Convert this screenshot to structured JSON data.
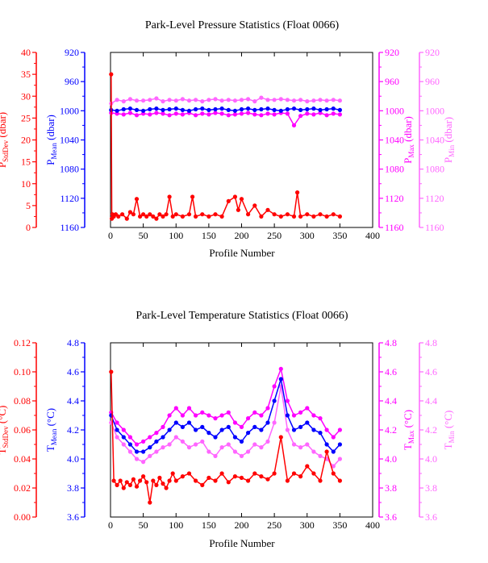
{
  "colors": {
    "stddev": "#ff0000",
    "mean": "#0000ff",
    "max": "#ff00ff",
    "min": "#ff66ff",
    "axis": "#000000"
  },
  "chart_data": [
    {
      "type": "line",
      "title": "Park-Level Pressure Statistics (Float 0066)",
      "xlabel": "Profile Number",
      "xlim": [
        0,
        400
      ],
      "xticks": [
        "0",
        "50",
        "100",
        "150",
        "200",
        "250",
        "300",
        "350",
        "400"
      ],
      "axes": {
        "stddev": {
          "label": "P",
          "sub": "StdDev",
          "unit": " (dbar)",
          "lim": [
            0,
            40
          ],
          "ticks": [
            "0",
            "5",
            "10",
            "15",
            "20",
            "25",
            "30",
            "35",
            "40"
          ]
        },
        "mean": {
          "label": "P",
          "sub": "Mean",
          "unit": " (dbar)",
          "lim": [
            1160,
            920
          ],
          "ticks": [
            "1160",
            "1120",
            "1080",
            "1040",
            "1000",
            "960",
            "920"
          ]
        },
        "max": {
          "label": "P",
          "sub": "Max",
          "unit": " (dbar)",
          "lim": [
            1160,
            920
          ],
          "ticks": [
            "1160",
            "1120",
            "1080",
            "1040",
            "1000",
            "960",
            "920"
          ]
        },
        "min": {
          "label": "P",
          "sub": "Min",
          "unit": " (dbar)",
          "lim": [
            1160,
            920
          ],
          "ticks": [
            "1160",
            "1120",
            "1080",
            "1040",
            "1000",
            "960",
            "920"
          ]
        }
      },
      "series": [
        {
          "key": "min",
          "x": [
            1,
            10,
            20,
            30,
            40,
            50,
            60,
            70,
            80,
            90,
            100,
            110,
            120,
            130,
            140,
            150,
            160,
            170,
            180,
            190,
            200,
            210,
            220,
            230,
            240,
            250,
            260,
            270,
            280,
            290,
            300,
            310,
            320,
            330,
            340,
            350
          ],
          "values": [
            990,
            985,
            987,
            984,
            986,
            986,
            985,
            983,
            987,
            985,
            986,
            984,
            986,
            985,
            987,
            985,
            984,
            986,
            985,
            986,
            985,
            984,
            987,
            982,
            985,
            985,
            984,
            985,
            986,
            985,
            987,
            986,
            985,
            986,
            985,
            986
          ]
        },
        {
          "key": "max",
          "x": [
            1,
            10,
            20,
            30,
            40,
            50,
            60,
            70,
            80,
            90,
            100,
            110,
            120,
            130,
            140,
            150,
            160,
            170,
            180,
            190,
            200,
            210,
            220,
            230,
            240,
            250,
            260,
            270,
            280,
            290,
            300,
            310,
            320,
            330,
            340,
            350
          ],
          "values": [
            1003,
            1004,
            1005,
            1003,
            1006,
            1004,
            1005,
            1003,
            1004,
            1006,
            1004,
            1005,
            1003,
            1006,
            1004,
            1005,
            1003,
            1004,
            1006,
            1005,
            1004,
            1003,
            1005,
            1006,
            1004,
            1005,
            1003,
            1004,
            1020,
            1007,
            1004,
            1005,
            1003,
            1006,
            1004,
            1005
          ]
        },
        {
          "key": "mean",
          "x": [
            1,
            10,
            20,
            30,
            40,
            50,
            60,
            70,
            80,
            90,
            100,
            110,
            120,
            130,
            140,
            150,
            160,
            170,
            180,
            190,
            200,
            210,
            220,
            230,
            240,
            250,
            260,
            270,
            280,
            290,
            300,
            310,
            320,
            330,
            340,
            350
          ],
          "values": [
            999,
            1000,
            998,
            997,
            999,
            1000,
            998,
            997,
            999,
            998,
            997,
            999,
            1000,
            998,
            997,
            999,
            998,
            997,
            999,
            1000,
            998,
            997,
            999,
            998,
            997,
            999,
            1000,
            998,
            997,
            999,
            998,
            997,
            999,
            998,
            997,
            999
          ]
        },
        {
          "key": "stddev",
          "x": [
            1,
            2,
            3,
            5,
            8,
            12,
            18,
            25,
            30,
            35,
            40,
            45,
            50,
            55,
            60,
            65,
            70,
            75,
            80,
            85,
            90,
            95,
            100,
            110,
            120,
            125,
            130,
            140,
            150,
            160,
            170,
            180,
            190,
            195,
            200,
            210,
            220,
            230,
            240,
            250,
            260,
            270,
            280,
            285,
            290,
            300,
            310,
            320,
            330,
            340,
            350
          ],
          "values": [
            35,
            2,
            3,
            2.5,
            3,
            2.5,
            3,
            2,
            3.5,
            3,
            6.5,
            2.5,
            3,
            2.5,
            3,
            2.5,
            2,
            3,
            2.5,
            3,
            7,
            2.5,
            3,
            2.5,
            3,
            7,
            2.5,
            3,
            2.5,
            3,
            2.5,
            6,
            7,
            4,
            6.5,
            3,
            5,
            2.5,
            4,
            3,
            2.5,
            3,
            2.5,
            8,
            2.5,
            3,
            2.5,
            3,
            2.5,
            3,
            2.5
          ]
        }
      ]
    },
    {
      "type": "line",
      "title": "Park-Level Temperature Statistics (Float 0066)",
      "xlabel": "Profile Number",
      "xlim": [
        0,
        400
      ],
      "xticks": [
        "0",
        "50",
        "100",
        "150",
        "200",
        "250",
        "300",
        "350",
        "400"
      ],
      "axes": {
        "stddev": {
          "label": "T",
          "sub": "StdDev",
          "unit": " (°C)",
          "lim": [
            0,
            0.12
          ],
          "ticks": [
            "0.00",
            "0.02",
            "0.04",
            "0.06",
            "0.08",
            "0.10",
            "0.12"
          ]
        },
        "mean": {
          "label": "T",
          "sub": "Mean",
          "unit": " (°C)",
          "lim": [
            3.6,
            4.8
          ],
          "ticks": [
            "3.6",
            "3.8",
            "4.0",
            "4.2",
            "4.4",
            "4.6",
            "4.8"
          ]
        },
        "max": {
          "label": "T",
          "sub": "Max",
          "unit": " (°C)",
          "lim": [
            3.6,
            4.8
          ],
          "ticks": [
            "3.6",
            "3.8",
            "4.0",
            "4.2",
            "4.4",
            "4.6",
            "4.8"
          ]
        },
        "min": {
          "label": "T",
          "sub": "Min",
          "unit": " (°C)",
          "lim": [
            3.6,
            4.8
          ],
          "ticks": [
            "3.6",
            "3.8",
            "4.0",
            "4.2",
            "4.4",
            "4.6",
            "4.8"
          ]
        }
      },
      "series": [
        {
          "key": "min",
          "x": [
            1,
            10,
            20,
            30,
            40,
            50,
            60,
            70,
            80,
            90,
            100,
            110,
            120,
            130,
            140,
            150,
            160,
            170,
            180,
            190,
            200,
            210,
            220,
            230,
            240,
            250,
            260,
            270,
            280,
            290,
            300,
            310,
            320,
            330,
            340,
            350
          ],
          "values": [
            4.25,
            4.15,
            4.1,
            4.05,
            4.0,
            3.98,
            4.02,
            4.05,
            4.08,
            4.1,
            4.15,
            4.12,
            4.08,
            4.1,
            4.12,
            4.05,
            4.02,
            4.08,
            4.1,
            4.05,
            4.02,
            4.05,
            4.1,
            4.08,
            4.12,
            4.25,
            4.5,
            4.2,
            4.1,
            4.08,
            4.1,
            4.05,
            4.02,
            4.0,
            3.95,
            4.0
          ]
        },
        {
          "key": "max",
          "x": [
            1,
            10,
            20,
            30,
            40,
            50,
            60,
            70,
            80,
            90,
            100,
            110,
            120,
            130,
            140,
            150,
            160,
            170,
            180,
            190,
            200,
            210,
            220,
            230,
            240,
            250,
            260,
            270,
            280,
            290,
            300,
            310,
            320,
            330,
            340,
            350
          ],
          "values": [
            4.32,
            4.25,
            4.2,
            4.15,
            4.1,
            4.12,
            4.15,
            4.18,
            4.22,
            4.3,
            4.35,
            4.3,
            4.35,
            4.3,
            4.32,
            4.3,
            4.28,
            4.3,
            4.32,
            4.25,
            4.22,
            4.28,
            4.32,
            4.3,
            4.35,
            4.5,
            4.62,
            4.4,
            4.3,
            4.32,
            4.35,
            4.3,
            4.28,
            4.2,
            4.15,
            4.2
          ]
        },
        {
          "key": "mean",
          "x": [
            1,
            10,
            20,
            30,
            40,
            50,
            60,
            70,
            80,
            90,
            100,
            110,
            120,
            130,
            140,
            150,
            160,
            170,
            180,
            190,
            200,
            210,
            220,
            230,
            240,
            250,
            260,
            270,
            280,
            290,
            300,
            310,
            320,
            330,
            340,
            350
          ],
          "values": [
            4.3,
            4.2,
            4.15,
            4.1,
            4.05,
            4.05,
            4.08,
            4.12,
            4.15,
            4.2,
            4.25,
            4.22,
            4.25,
            4.2,
            4.22,
            4.18,
            4.15,
            4.2,
            4.22,
            4.15,
            4.12,
            4.18,
            4.22,
            4.2,
            4.25,
            4.4,
            4.55,
            4.3,
            4.2,
            4.22,
            4.25,
            4.2,
            4.18,
            4.1,
            4.05,
            4.1
          ]
        },
        {
          "key": "stddev",
          "x": [
            1,
            5,
            10,
            15,
            20,
            25,
            30,
            35,
            40,
            45,
            50,
            55,
            60,
            65,
            70,
            75,
            80,
            85,
            90,
            95,
            100,
            110,
            120,
            130,
            140,
            150,
            160,
            170,
            180,
            190,
            200,
            210,
            220,
            230,
            240,
            250,
            260,
            270,
            280,
            290,
            300,
            310,
            320,
            330,
            340,
            350
          ],
          "values": [
            0.1,
            0.025,
            0.022,
            0.025,
            0.02,
            0.024,
            0.022,
            0.026,
            0.021,
            0.025,
            0.028,
            0.024,
            0.01,
            0.025,
            0.022,
            0.027,
            0.023,
            0.02,
            0.025,
            0.03,
            0.025,
            0.028,
            0.03,
            0.025,
            0.022,
            0.027,
            0.025,
            0.03,
            0.024,
            0.028,
            0.027,
            0.025,
            0.03,
            0.028,
            0.026,
            0.03,
            0.055,
            0.025,
            0.03,
            0.028,
            0.035,
            0.03,
            0.025,
            0.045,
            0.03,
            0.025
          ]
        }
      ]
    }
  ]
}
